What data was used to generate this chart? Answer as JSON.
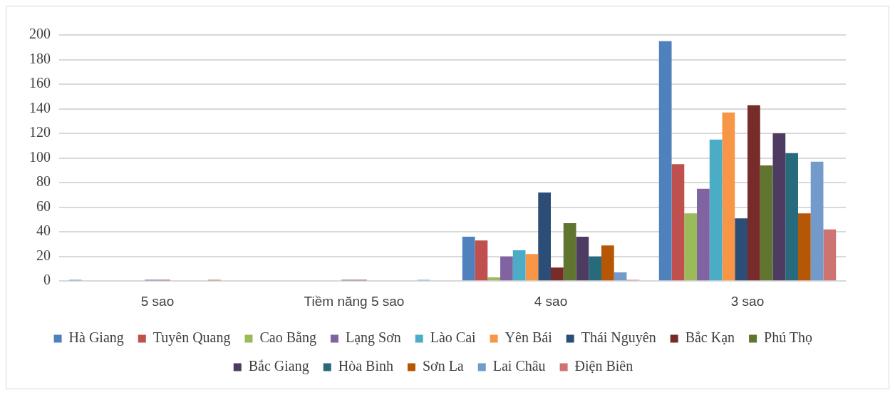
{
  "chart_data": {
    "type": "bar",
    "categories": [
      "5 sao",
      "Tiềm năng 5 sao",
      "4 sao",
      "3 sao"
    ],
    "ylim": [
      0,
      200
    ],
    "yticks": [
      0,
      20,
      40,
      60,
      80,
      100,
      120,
      140,
      160,
      180,
      200
    ],
    "grid": "y",
    "legend": "bottom",
    "series": [
      {
        "name": "Hà Giang",
        "color": "#4f81bd",
        "values": [
          1,
          0,
          36,
          195
        ]
      },
      {
        "name": "Tuyên Quang",
        "color": "#c0504d",
        "values": [
          0,
          0,
          33,
          95
        ]
      },
      {
        "name": "Cao Bằng",
        "color": "#9bbb59",
        "values": [
          0,
          0,
          3,
          55
        ]
      },
      {
        "name": "Lạng Sơn",
        "color": "#8064a2",
        "values": [
          0,
          0,
          20,
          75
        ]
      },
      {
        "name": "Lào Cai",
        "color": "#4bacc6",
        "values": [
          0,
          0,
          25,
          115
        ]
      },
      {
        "name": "Yên Bái",
        "color": "#f79646",
        "values": [
          0,
          0,
          22,
          137
        ]
      },
      {
        "name": "Thái Nguyên",
        "color": "#2c4d75",
        "values": [
          1,
          1,
          72,
          51
        ]
      },
      {
        "name": "Bắc Kạn",
        "color": "#772c2a",
        "values": [
          1,
          1,
          11,
          143
        ]
      },
      {
        "name": "Phú Thọ",
        "color": "#5f7530",
        "values": [
          0,
          0,
          47,
          94
        ]
      },
      {
        "name": "Bắc Giang",
        "color": "#4d3b62",
        "values": [
          0,
          0,
          36,
          120
        ]
      },
      {
        "name": "Hòa Bình",
        "color": "#276a7c",
        "values": [
          0,
          0,
          20,
          104
        ]
      },
      {
        "name": "Sơn La",
        "color": "#b65708",
        "values": [
          1,
          0,
          29,
          55
        ]
      },
      {
        "name": "Lai Châu",
        "color": "#729aca",
        "values": [
          0,
          1,
          7,
          97
        ]
      },
      {
        "name": "Điện Biên",
        "color": "#cd7371",
        "values": [
          0,
          0,
          1,
          42
        ]
      }
    ]
  }
}
